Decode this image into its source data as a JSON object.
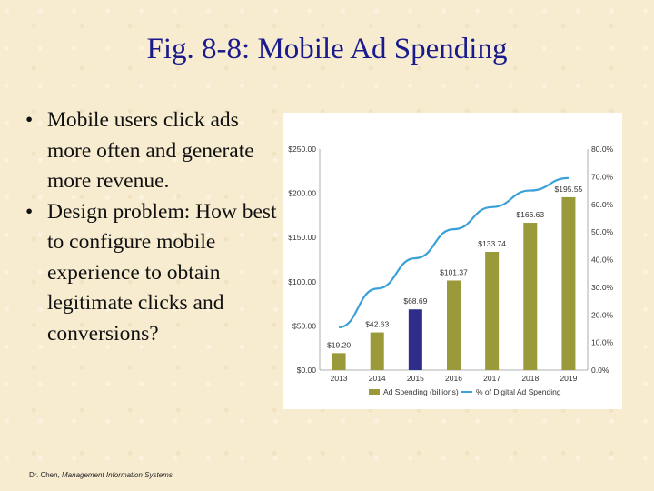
{
  "slide": {
    "title": "Fig. 8-8: Mobile Ad Spending",
    "bullet_marker": "•",
    "bullets": [
      "Mobile users click ads more often and generate more revenue.",
      "Design problem: How best to configure mobile experience to obtain legitimate clicks and conversions?"
    ],
    "footer_prefix": "Dr. Chen, ",
    "footer_emph": "Management Information Systems"
  },
  "chart_data": {
    "type": "bar",
    "categories": [
      "2013",
      "2014",
      "2015",
      "2016",
      "2017",
      "2018",
      "2019"
    ],
    "series": [
      {
        "name": "Ad Spending (billions)",
        "axis": "left",
        "kind": "bar",
        "values": [
          19.2,
          42.63,
          68.69,
          101.37,
          133.74,
          166.63,
          195.55
        ],
        "labels": [
          "$19.20",
          "$42.63",
          "$68.69",
          "$101.37",
          "$133.74",
          "$166.63",
          "$195.55"
        ],
        "color": "#9a9a3a",
        "highlight_index": 2,
        "highlight_color": "#2e2e8a"
      },
      {
        "name": "% of Digital Ad Spending",
        "axis": "right",
        "kind": "line",
        "values": [
          15.5,
          29.5,
          40.5,
          51,
          59,
          65,
          69.5
        ],
        "color": "#3aa0d8"
      }
    ],
    "y_left": {
      "min": 0,
      "max": 250,
      "ticks": [
        0,
        50,
        100,
        150,
        200,
        250
      ],
      "tick_labels": [
        "$0.00",
        "$50.00",
        "$100.00",
        "$150.00",
        "$200.00",
        "$250.00"
      ]
    },
    "y_right": {
      "min": 0,
      "max": 80,
      "ticks": [
        0,
        10,
        20,
        30,
        40,
        50,
        60,
        70,
        80
      ],
      "tick_labels": [
        "0.0%",
        "10.0%",
        "20.0%",
        "30.0%",
        "40.0%",
        "50.0%",
        "60.0%",
        "70.0%",
        "80.0%"
      ]
    },
    "legend": {
      "position": "bottom",
      "items": [
        "Ad Spending (billions)",
        "% of Digital Ad Spending"
      ]
    },
    "grid": false
  }
}
